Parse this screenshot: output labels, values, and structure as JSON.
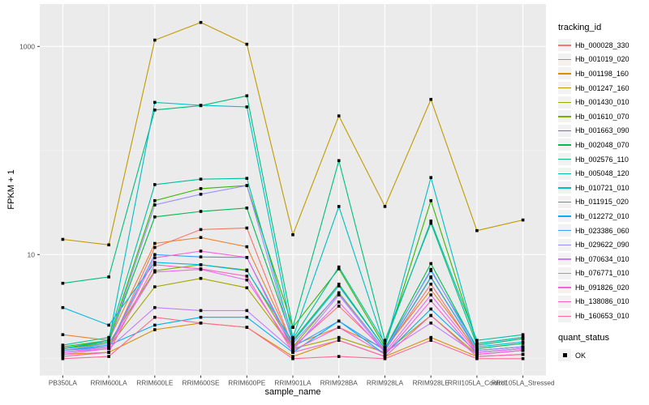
{
  "chart": {
    "x_axis_title": "sample_name",
    "y_axis_title": "FPKM + 1",
    "series_legend_title": "tracking_id",
    "quant_legend_title": "quant_status",
    "quant_legend_items": [
      "OK"
    ],
    "panel_color": "#EBEBEB",
    "gridline_color": "#FFFFFF",
    "tick_label_color": "#4D4D4D",
    "point_color": "#000000"
  },
  "chart_data": {
    "type": "line",
    "title": "",
    "xlabel": "sample_name",
    "ylabel": "FPKM + 1",
    "y_scale": "log10",
    "y_tick_values": [
      10,
      1000
    ],
    "y_tick_labels": [
      "10",
      "1000"
    ],
    "y_minor_gridline_values": [
      1,
      100
    ],
    "ylim": [
      0.7,
      2500
    ],
    "grid": true,
    "legend_position": "right",
    "point_marker": "black-square",
    "categories": [
      "PB350LA",
      "RRIM600LA",
      "RRIM600LE",
      "RRIM600SE",
      "RRIM600PE",
      "RRIM901LA",
      "RRIM928BA",
      "RRIM928LA",
      "RRIM928LE",
      "RRII105LA_Control",
      "RRII105LA_Stressed"
    ],
    "series": [
      {
        "name": "Hb_000028_330",
        "color": "#F8766D",
        "values": [
          1.15,
          1.25,
          11.7,
          17.4,
          18,
          1.3,
          3.2,
          1.2,
          5.2,
          1.15,
          1.25
        ]
      },
      {
        "name": "Hb_001019_020",
        "color": "#EA8331",
        "values": [
          1.7,
          1.5,
          12.8,
          14.6,
          11.9,
          1.35,
          2.0,
          1.25,
          4.6,
          1.2,
          1.3
        ]
      },
      {
        "name": "Hb_001198_160",
        "color": "#D89000",
        "values": [
          1.1,
          1.15,
          1.9,
          2.2,
          2.0,
          1.05,
          1.5,
          1.05,
          1.6,
          1.05,
          1.1
        ]
      },
      {
        "name": "Hb_001247_160",
        "color": "#C09B00",
        "values": [
          14,
          12.4,
          1150,
          1700,
          1050,
          15.5,
          215,
          29,
          310,
          17,
          21.5
        ]
      },
      {
        "name": "Hb_001430_010",
        "color": "#A3A500",
        "values": [
          1.2,
          1.3,
          4.9,
          5.9,
          4.8,
          1.25,
          1.6,
          1.15,
          2.6,
          1.1,
          1.2
        ]
      },
      {
        "name": "Hb_001610_070",
        "color": "#7CAE00",
        "values": [
          1.25,
          1.4,
          7.0,
          8.0,
          7.1,
          1.3,
          4.3,
          1.2,
          6.1,
          1.2,
          1.3
        ]
      },
      {
        "name": "Hb_001663_090",
        "color": "#39B600",
        "values": [
          1.3,
          1.5,
          33,
          43,
          46,
          2.0,
          7.3,
          1.3,
          33,
          1.4,
          1.6
        ]
      },
      {
        "name": "Hb_002048_070",
        "color": "#00BB4E",
        "values": [
          1.25,
          1.45,
          23,
          26,
          28,
          1.5,
          5.2,
          1.25,
          8.2,
          1.25,
          1.4
        ]
      },
      {
        "name": "Hb_002576_110",
        "color": "#00BF7D",
        "values": [
          5.3,
          6.1,
          245,
          270,
          335,
          2.0,
          80,
          1.5,
          20,
          1.35,
          1.55
        ]
      },
      {
        "name": "Hb_005048_120",
        "color": "#00C1A3",
        "values": [
          1.35,
          1.6,
          47,
          53,
          54,
          1.55,
          7.6,
          1.4,
          21,
          1.5,
          1.7
        ]
      },
      {
        "name": "Hb_010721_010",
        "color": "#00BFC4",
        "values": [
          1.25,
          1.5,
          290,
          272,
          262,
          1.6,
          29,
          1.3,
          55,
          1.4,
          1.6
        ]
      },
      {
        "name": "Hb_011915_020",
        "color": "#00BAE0",
        "values": [
          3.1,
          2.1,
          8.4,
          8.0,
          7.0,
          1.45,
          5.0,
          1.25,
          7.0,
          1.3,
          1.45
        ]
      },
      {
        "name": "Hb_012272_010",
        "color": "#00B0F6",
        "values": [
          1.2,
          1.35,
          2.1,
          2.5,
          2.5,
          1.15,
          2.3,
          1.1,
          3.0,
          1.15,
          1.25
        ]
      },
      {
        "name": "Hb_023386_060",
        "color": "#35A2FF",
        "values": [
          1.2,
          1.3,
          10,
          9.5,
          9.4,
          1.3,
          2.3,
          1.2,
          6.0,
          1.2,
          1.3
        ]
      },
      {
        "name": "Hb_029622_090",
        "color": "#9590FF",
        "values": [
          1.2,
          1.4,
          30,
          38,
          46,
          1.4,
          4.2,
          1.2,
          7.2,
          1.2,
          1.3
        ]
      },
      {
        "name": "Hb_070634_010",
        "color": "#C77CFF",
        "values": [
          1.15,
          1.25,
          3.1,
          2.9,
          2.9,
          1.2,
          4.1,
          1.15,
          2.2,
          1.1,
          1.2
        ]
      },
      {
        "name": "Hb_076771_010",
        "color": "#E76BF3",
        "values": [
          1.15,
          1.3,
          6.8,
          7.2,
          5.7,
          1.25,
          3.5,
          1.15,
          4.1,
          1.15,
          1.25
        ]
      },
      {
        "name": "Hb_091826_020",
        "color": "#FA62DB",
        "values": [
          1.1,
          1.25,
          9.3,
          10.8,
          9.4,
          1.2,
          2.0,
          1.1,
          3.6,
          1.1,
          1.2
        ]
      },
      {
        "name": "Hb_138086_010",
        "color": "#FF62BC",
        "values": [
          1.05,
          1.15,
          8.0,
          7.3,
          6.2,
          1.15,
          1.5,
          1.05,
          2.6,
          1.05,
          1.1
        ]
      },
      {
        "name": "Hb_160653_010",
        "color": "#FF6A98",
        "values": [
          1.0,
          1.05,
          2.5,
          2.2,
          2.0,
          1.0,
          1.05,
          1.0,
          1.5,
          1.0,
          1.0
        ]
      }
    ]
  }
}
